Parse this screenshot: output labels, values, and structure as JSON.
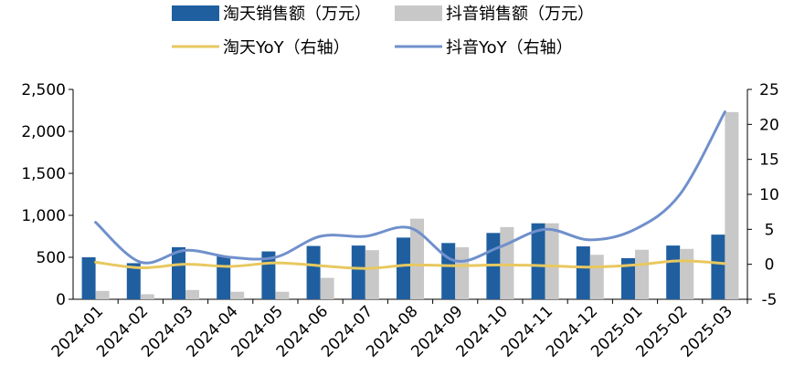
{
  "chart_data": {
    "type": "bar",
    "categories": [
      "2024-01",
      "2024-02",
      "2024-03",
      "2024-04",
      "2024-05",
      "2024-06",
      "2024-07",
      "2024-08",
      "2024-09",
      "2024-10",
      "2024-11",
      "2024-12",
      "2025-01",
      "2025-02",
      "2025-03"
    ],
    "series": [
      {
        "name": "淘天销售额（万元）",
        "type": "bar",
        "axis": "left",
        "color": "#1f5fa0",
        "values": [
          500,
          430,
          620,
          510,
          570,
          635,
          640,
          735,
          670,
          790,
          905,
          630,
          490,
          640,
          770
        ]
      },
      {
        "name": "抖音销售额（万元）",
        "type": "bar",
        "axis": "left",
        "color": "#c8c8c8",
        "values": [
          100,
          60,
          110,
          90,
          90,
          255,
          585,
          960,
          620,
          860,
          905,
          530,
          590,
          600,
          2230
        ]
      },
      {
        "name": "淘天YoY（右轴）",
        "type": "line",
        "axis": "right",
        "color": "#e8c860",
        "values": [
          0.3,
          -0.5,
          0.0,
          -0.3,
          0.2,
          -0.2,
          -0.6,
          -0.1,
          -0.2,
          -0.1,
          -0.2,
          -0.4,
          -0.1,
          0.5,
          0.1
        ]
      },
      {
        "name": "抖音YoY（右轴）",
        "type": "line",
        "axis": "right",
        "color": "#7090cc",
        "values": [
          6.0,
          0.3,
          2.0,
          1.0,
          1.0,
          4.0,
          4.0,
          5.2,
          0.5,
          2.5,
          5.0,
          3.5,
          5.0,
          10.0,
          21.8
        ]
      }
    ],
    "y_left": {
      "min": 0,
      "max": 2500,
      "ticks": [
        "0",
        "500",
        "1,000",
        "1,500",
        "2,000",
        "2,500"
      ],
      "tick_values": [
        0,
        500,
        1000,
        1500,
        2000,
        2500
      ]
    },
    "y_right": {
      "min": -5,
      "max": 25,
      "ticks": [
        "-5",
        "0",
        "5",
        "10",
        "15",
        "20",
        "25"
      ],
      "tick_values": [
        -5,
        0,
        5,
        10,
        15,
        20,
        25
      ]
    },
    "legend_position": "top-center",
    "grid": false
  }
}
